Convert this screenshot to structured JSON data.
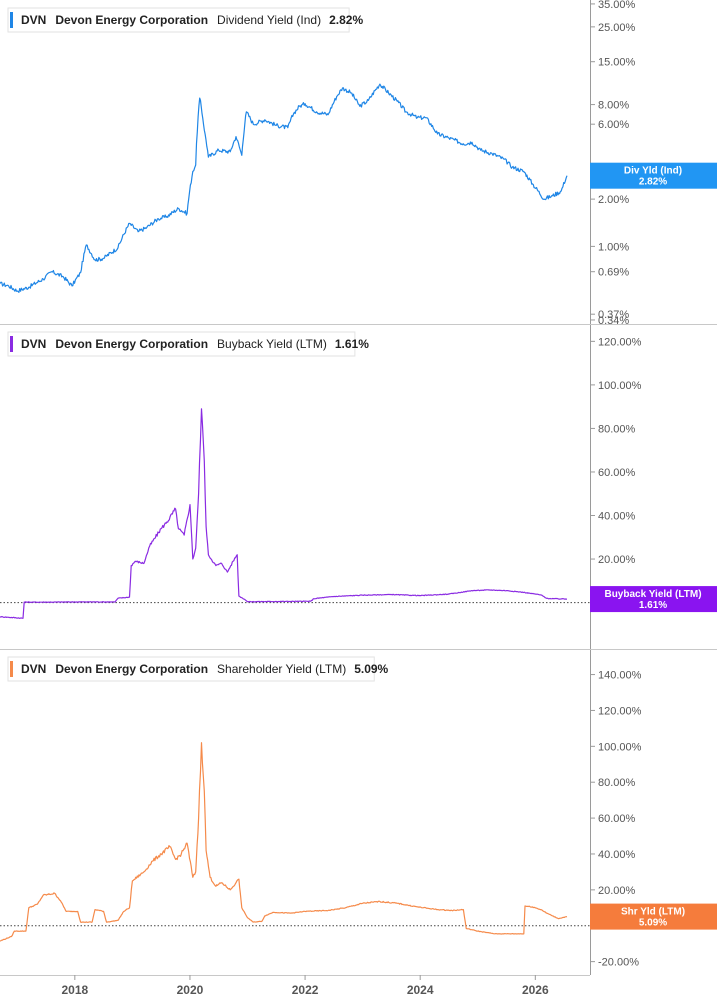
{
  "chart_data": [
    {
      "type": "line",
      "legend": {
        "ticker": "DVN",
        "company": "Devon Energy Corporation",
        "metric": "Dividend Yield (Ind)",
        "value": "2.82%"
      },
      "series": [
        {
          "name": "Dividend Yield (Ind)",
          "color": "#1f86e6",
          "points": [
            [
              2016.7,
              0.58
            ],
            [
              2016.85,
              0.56
            ],
            [
              2017.0,
              0.52
            ],
            [
              2017.2,
              0.55
            ],
            [
              2017.45,
              0.62
            ],
            [
              2017.6,
              0.69
            ],
            [
              2017.8,
              0.64
            ],
            [
              2017.95,
              0.56
            ],
            [
              2018.1,
              0.68
            ],
            [
              2018.2,
              1.02
            ],
            [
              2018.35,
              0.82
            ],
            [
              2018.5,
              0.84
            ],
            [
              2018.75,
              0.98
            ],
            [
              2018.95,
              1.4
            ],
            [
              2019.1,
              1.24
            ],
            [
              2019.25,
              1.32
            ],
            [
              2019.45,
              1.5
            ],
            [
              2019.6,
              1.55
            ],
            [
              2019.8,
              1.74
            ],
            [
              2019.95,
              1.62
            ],
            [
              2020.05,
              3.0
            ],
            [
              2020.1,
              3.3
            ],
            [
              2020.17,
              8.8
            ],
            [
              2020.25,
              5.5
            ],
            [
              2020.32,
              3.7
            ],
            [
              2020.5,
              4.1
            ],
            [
              2020.7,
              4.0
            ],
            [
              2020.8,
              5.0
            ],
            [
              2020.9,
              3.8
            ],
            [
              2020.98,
              7.2
            ],
            [
              2021.1,
              6.0
            ],
            [
              2021.3,
              6.4
            ],
            [
              2021.5,
              5.9
            ],
            [
              2021.7,
              5.7
            ],
            [
              2021.8,
              7.0
            ],
            [
              2021.9,
              7.8
            ],
            [
              2022.0,
              8.1
            ],
            [
              2022.2,
              7.2
            ],
            [
              2022.4,
              6.9
            ],
            [
              2022.55,
              9.0
            ],
            [
              2022.65,
              10.2
            ],
            [
              2022.8,
              9.5
            ],
            [
              2022.95,
              7.8
            ],
            [
              2023.1,
              8.5
            ],
            [
              2023.3,
              10.8
            ],
            [
              2023.45,
              9.5
            ],
            [
              2023.6,
              8.4
            ],
            [
              2023.75,
              7.2
            ],
            [
              2023.95,
              6.6
            ],
            [
              2024.1,
              6.6
            ],
            [
              2024.3,
              5.2
            ],
            [
              2024.5,
              4.9
            ],
            [
              2024.75,
              4.5
            ],
            [
              2024.9,
              4.6
            ],
            [
              2025.05,
              4.1
            ],
            [
              2025.25,
              3.9
            ],
            [
              2025.45,
              3.6
            ],
            [
              2025.6,
              3.2
            ],
            [
              2025.8,
              3.0
            ],
            [
              2025.95,
              2.5
            ],
            [
              2026.15,
              2.0
            ],
            [
              2026.3,
              2.1
            ],
            [
              2026.45,
              2.25
            ],
            [
              2026.55,
              2.82
            ]
          ]
        }
      ],
      "y_scale": "log",
      "ylim": [
        0.33,
        36
      ],
      "y_ticks": [
        "35.00%",
        "25.00%",
        "15.00%",
        "8.00%",
        "6.00%",
        "2.00%",
        "1.00%",
        "0.69%",
        "0.37%",
        "0.34%"
      ],
      "y_tick_values": [
        35,
        25,
        15,
        8,
        6,
        2,
        1,
        0.69,
        0.37,
        0.34
      ],
      "tag": {
        "label": "Div Yld (Ind)",
        "value": "2.82%",
        "color": "#2196f3"
      }
    },
    {
      "type": "line",
      "legend": {
        "ticker": "DVN",
        "company": "Devon Energy Corporation",
        "metric": "Buyback Yield (LTM)",
        "value": "1.61%"
      },
      "series": [
        {
          "name": "Buyback Yield (LTM)",
          "color": "#8a2be2",
          "points": [
            [
              2016.7,
              -6.5
            ],
            [
              2017.1,
              -7.2
            ],
            [
              2017.12,
              0.2
            ],
            [
              2017.5,
              0.2
            ],
            [
              2018.0,
              0.3
            ],
            [
              2018.7,
              0.3
            ],
            [
              2018.75,
              2.0
            ],
            [
              2018.95,
              2.5
            ],
            [
              2018.98,
              17.0
            ],
            [
              2019.05,
              19.0
            ],
            [
              2019.2,
              18.0
            ],
            [
              2019.3,
              26.0
            ],
            [
              2019.5,
              34.0
            ],
            [
              2019.6,
              37.0
            ],
            [
              2019.75,
              43.0
            ],
            [
              2019.8,
              34.0
            ],
            [
              2019.9,
              31.0
            ],
            [
              2020.0,
              45.0
            ],
            [
              2020.05,
              20.0
            ],
            [
              2020.1,
              25.0
            ],
            [
              2020.15,
              50.0
            ],
            [
              2020.2,
              89.0
            ],
            [
              2020.25,
              65.0
            ],
            [
              2020.28,
              35.0
            ],
            [
              2020.32,
              22.0
            ],
            [
              2020.45,
              17.0
            ],
            [
              2020.55,
              18.0
            ],
            [
              2020.65,
              14.0
            ],
            [
              2020.75,
              19.0
            ],
            [
              2020.82,
              22.0
            ],
            [
              2020.85,
              3.0
            ],
            [
              2020.95,
              1.5
            ],
            [
              2021.0,
              0.4
            ],
            [
              2021.5,
              0.5
            ],
            [
              2022.1,
              0.6
            ],
            [
              2022.15,
              1.8
            ],
            [
              2022.5,
              2.8
            ],
            [
              2023.0,
              3.4
            ],
            [
              2023.5,
              3.7
            ],
            [
              2024.0,
              3.2
            ],
            [
              2024.5,
              3.9
            ],
            [
              2024.9,
              5.5
            ],
            [
              2025.2,
              5.8
            ],
            [
              2025.5,
              5.5
            ],
            [
              2025.8,
              4.7
            ],
            [
              2026.1,
              3.5
            ],
            [
              2026.2,
              1.9
            ],
            [
              2026.55,
              1.61
            ]
          ]
        }
      ],
      "ylim": [
        -8,
        122
      ],
      "y_ticks": [
        "120.00%",
        "100.00%",
        "80.00%",
        "60.00%",
        "40.00%",
        "20.00%"
      ],
      "y_tick_values": [
        120,
        100,
        80,
        60,
        40,
        20
      ],
      "zero_line": true,
      "tag": {
        "label": "Buyback Yield (LTM)",
        "value": "1.61%",
        "color": "#8a14f0"
      }
    },
    {
      "type": "line",
      "legend": {
        "ticker": "DVN",
        "company": "Devon Energy Corporation",
        "metric": "Shareholder Yield (LTM)",
        "value": "5.09%"
      },
      "series": [
        {
          "name": "Shareholder Yield (LTM)",
          "color": "#f58a4a",
          "points": [
            [
              2016.7,
              -8.5
            ],
            [
              2016.9,
              -6.0
            ],
            [
              2016.95,
              -3.0
            ],
            [
              2017.15,
              -3.0
            ],
            [
              2017.2,
              10.0
            ],
            [
              2017.35,
              12.0
            ],
            [
              2017.45,
              17.0
            ],
            [
              2017.65,
              18.0
            ],
            [
              2017.75,
              14.0
            ],
            [
              2017.85,
              8.0
            ],
            [
              2018.05,
              8.0
            ],
            [
              2018.1,
              2.0
            ],
            [
              2018.3,
              2.0
            ],
            [
              2018.35,
              9.0
            ],
            [
              2018.5,
              8.0
            ],
            [
              2018.55,
              2.0
            ],
            [
              2018.75,
              3.0
            ],
            [
              2018.85,
              8.0
            ],
            [
              2018.95,
              10.0
            ],
            [
              2019.0,
              25.0
            ],
            [
              2019.2,
              30.0
            ],
            [
              2019.35,
              36.0
            ],
            [
              2019.5,
              40.0
            ],
            [
              2019.65,
              44.0
            ],
            [
              2019.75,
              37.0
            ],
            [
              2019.85,
              40.0
            ],
            [
              2019.95,
              46.0
            ],
            [
              2020.05,
              27.0
            ],
            [
              2020.1,
              30.0
            ],
            [
              2020.15,
              60.0
            ],
            [
              2020.2,
              102.0
            ],
            [
              2020.25,
              75.0
            ],
            [
              2020.28,
              42.0
            ],
            [
              2020.35,
              27.0
            ],
            [
              2020.45,
              22.0
            ],
            [
              2020.55,
              24.0
            ],
            [
              2020.7,
              20.0
            ],
            [
              2020.8,
              24.0
            ],
            [
              2020.85,
              26.0
            ],
            [
              2020.9,
              10.0
            ],
            [
              2021.0,
              4.5
            ],
            [
              2021.1,
              2.0
            ],
            [
              2021.25,
              2.5
            ],
            [
              2021.3,
              5.5
            ],
            [
              2021.45,
              7.5
            ],
            [
              2021.75,
              7.0
            ],
            [
              2022.0,
              8.0
            ],
            [
              2022.4,
              8.5
            ],
            [
              2022.7,
              10.0
            ],
            [
              2023.0,
              12.5
            ],
            [
              2023.3,
              13.5
            ],
            [
              2023.6,
              12.5
            ],
            [
              2023.95,
              10.5
            ],
            [
              2024.3,
              9.0
            ],
            [
              2024.55,
              8.5
            ],
            [
              2024.75,
              9.0
            ],
            [
              2024.8,
              -1.5
            ],
            [
              2025.0,
              -3.0
            ],
            [
              2025.3,
              -4.5
            ],
            [
              2025.55,
              -4.5
            ],
            [
              2025.8,
              -4.5
            ],
            [
              2025.82,
              11.0
            ],
            [
              2025.95,
              10.5
            ],
            [
              2026.1,
              9.0
            ],
            [
              2026.2,
              7.0
            ],
            [
              2026.4,
              4.0
            ],
            [
              2026.55,
              5.09
            ]
          ]
        }
      ],
      "ylim": [
        -23,
        147
      ],
      "y_ticks": [
        "140.00%",
        "120.00%",
        "100.00%",
        "80.00%",
        "60.00%",
        "40.00%",
        "20.00%",
        "-20.00%"
      ],
      "y_tick_values": [
        140,
        120,
        100,
        80,
        60,
        40,
        20,
        -20
      ],
      "zero_line": true,
      "tag": {
        "label": "Shr Yld (LTM)",
        "value": "5.09%",
        "color": "#f57c3c"
      }
    }
  ],
  "x_axis": {
    "range": [
      2016.7,
      2026.95
    ],
    "tick_labels": [
      "2018",
      "2020",
      "2022",
      "2024",
      "2026"
    ],
    "tick_values": [
      2018,
      2020,
      2022,
      2024,
      2026
    ]
  }
}
